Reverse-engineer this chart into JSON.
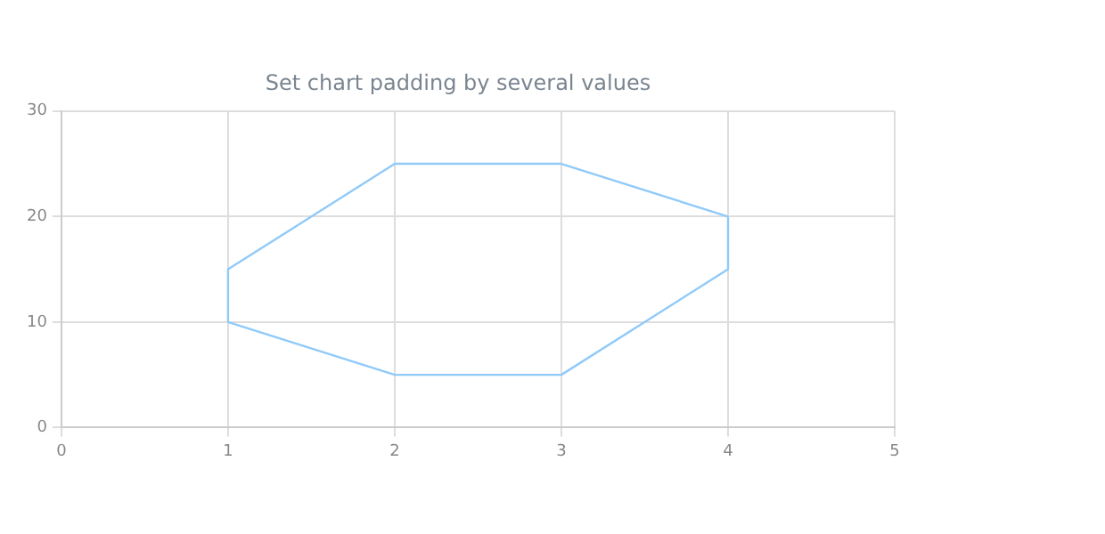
{
  "chart_data": {
    "type": "line",
    "title": "Set chart padding by several values",
    "series": [
      {
        "color": "#90caf9",
        "x": [
          1,
          1,
          2,
          3,
          4,
          4
        ],
        "values": [
          15,
          10,
          5,
          5,
          15,
          20
        ]
      },
      {
        "color": "#90caf9",
        "x": [
          1,
          2,
          3,
          4
        ],
        "values": [
          15,
          25,
          25,
          20
        ]
      }
    ],
    "xlim": [
      0,
      5
    ],
    "xticks": [
      0,
      1,
      2,
      3,
      4,
      5
    ],
    "ylim": [
      0,
      30
    ],
    "yticks": [
      0,
      10,
      20,
      30
    ],
    "grid": true,
    "legend": false,
    "marker": "none",
    "line_style": "solid"
  }
}
